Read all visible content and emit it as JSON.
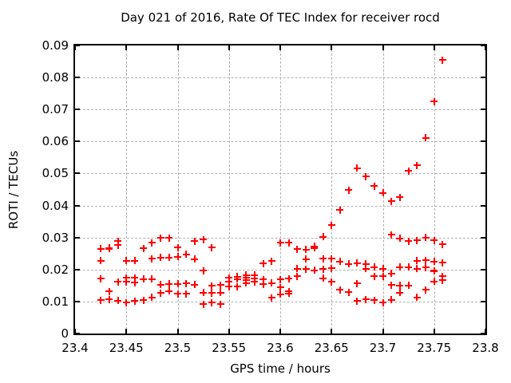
{
  "chart_data": {
    "type": "scatter",
    "title": "Day 021 of 2016, Rate Of TEC Index for receiver rocd",
    "xlabel": "GPS time / hours",
    "ylabel": "ROTI / TECUs",
    "xlim": [
      23.4,
      23.8
    ],
    "ylim": [
      0,
      0.09
    ],
    "xtick_labels": [
      "23.4",
      "23.45",
      "23.5",
      "23.55",
      "23.6",
      "23.65",
      "23.7",
      "23.75",
      "23.8"
    ],
    "ytick_labels": [
      "0",
      "0.01",
      "0.02",
      "0.03",
      "0.04",
      "0.05",
      "0.06",
      "0.07",
      "0.08",
      "0.09"
    ],
    "grid": true,
    "grid_style": "dashed",
    "grid_color": "#b0b0b0",
    "legend": "none",
    "marker_shape": "plus",
    "marker_color": "#ff0000",
    "background_color": "#ffffff",
    "points": [
      [
        23.425,
        0.0265
      ],
      [
        23.425,
        0.0228
      ],
      [
        23.425,
        0.0172
      ],
      [
        23.425,
        0.0104
      ],
      [
        23.4333,
        0.0268
      ],
      [
        23.4333,
        0.0265
      ],
      [
        23.4333,
        0.0131
      ],
      [
        23.4333,
        0.0106
      ],
      [
        23.4417,
        0.0288
      ],
      [
        23.4417,
        0.0276
      ],
      [
        23.4417,
        0.0161
      ],
      [
        23.4417,
        0.0103
      ],
      [
        23.45,
        0.0228
      ],
      [
        23.45,
        0.0174
      ],
      [
        23.45,
        0.0161
      ],
      [
        23.45,
        0.0096
      ],
      [
        23.4583,
        0.0228
      ],
      [
        23.4583,
        0.0174
      ],
      [
        23.4583,
        0.0159
      ],
      [
        23.4583,
        0.0102
      ],
      [
        23.4667,
        0.0266
      ],
      [
        23.4667,
        0.017
      ],
      [
        23.4667,
        0.0104
      ],
      [
        23.475,
        0.0284
      ],
      [
        23.475,
        0.0234
      ],
      [
        23.475,
        0.017
      ],
      [
        23.475,
        0.0113
      ],
      [
        23.4833,
        0.0298
      ],
      [
        23.4833,
        0.0237
      ],
      [
        23.4833,
        0.0153
      ],
      [
        23.4833,
        0.0126
      ],
      [
        23.4917,
        0.0298
      ],
      [
        23.4917,
        0.0237
      ],
      [
        23.4917,
        0.0155
      ],
      [
        23.4917,
        0.0133
      ],
      [
        23.5,
        0.0269
      ],
      [
        23.5,
        0.024
      ],
      [
        23.5,
        0.0155
      ],
      [
        23.5,
        0.0124
      ],
      [
        23.5083,
        0.0247
      ],
      [
        23.5083,
        0.0157
      ],
      [
        23.5083,
        0.0124
      ],
      [
        23.5167,
        0.0288
      ],
      [
        23.5167,
        0.0233
      ],
      [
        23.5167,
        0.0153
      ],
      [
        23.525,
        0.0293
      ],
      [
        23.525,
        0.0196
      ],
      [
        23.525,
        0.0128
      ],
      [
        23.525,
        0.0092
      ],
      [
        23.5333,
        0.0269
      ],
      [
        23.5333,
        0.0149
      ],
      [
        23.5333,
        0.0127
      ],
      [
        23.5333,
        0.0096
      ],
      [
        23.5417,
        0.0151
      ],
      [
        23.5417,
        0.0128
      ],
      [
        23.5417,
        0.0091
      ],
      [
        23.55,
        0.0174
      ],
      [
        23.55,
        0.0163
      ],
      [
        23.55,
        0.0147
      ],
      [
        23.5583,
        0.0178
      ],
      [
        23.5583,
        0.017
      ],
      [
        23.5583,
        0.0147
      ],
      [
        23.5667,
        0.0182
      ],
      [
        23.5667,
        0.0174
      ],
      [
        23.5667,
        0.0166
      ],
      [
        23.5667,
        0.0158
      ],
      [
        23.575,
        0.0182
      ],
      [
        23.575,
        0.0173
      ],
      [
        23.575,
        0.0161
      ],
      [
        23.5833,
        0.0219
      ],
      [
        23.5833,
        0.0169
      ],
      [
        23.5833,
        0.0154
      ],
      [
        23.5917,
        0.0226
      ],
      [
        23.5917,
        0.0158
      ],
      [
        23.5917,
        0.0111
      ],
      [
        23.6,
        0.0283
      ],
      [
        23.6,
        0.0169
      ],
      [
        23.6,
        0.0144
      ],
      [
        23.6,
        0.0123
      ],
      [
        23.6083,
        0.0283
      ],
      [
        23.6083,
        0.0171
      ],
      [
        23.6083,
        0.0131
      ],
      [
        23.6083,
        0.0125
      ],
      [
        23.6167,
        0.0264
      ],
      [
        23.6167,
        0.0202
      ],
      [
        23.6167,
        0.0179
      ],
      [
        23.625,
        0.0262
      ],
      [
        23.625,
        0.0233
      ],
      [
        23.625,
        0.0201
      ],
      [
        23.6333,
        0.0272
      ],
      [
        23.6333,
        0.0268
      ],
      [
        23.6333,
        0.0198
      ],
      [
        23.6417,
        0.0302
      ],
      [
        23.6417,
        0.0234
      ],
      [
        23.6417,
        0.0201
      ],
      [
        23.6417,
        0.0173
      ],
      [
        23.65,
        0.0338
      ],
      [
        23.65,
        0.0234
      ],
      [
        23.65,
        0.0204
      ],
      [
        23.65,
        0.0162
      ],
      [
        23.6583,
        0.0386
      ],
      [
        23.6583,
        0.0225
      ],
      [
        23.6583,
        0.0137
      ],
      [
        23.6667,
        0.0448
      ],
      [
        23.6667,
        0.0218
      ],
      [
        23.6667,
        0.0129
      ],
      [
        23.675,
        0.0517
      ],
      [
        23.675,
        0.022
      ],
      [
        23.675,
        0.0156
      ],
      [
        23.675,
        0.0102
      ],
      [
        23.6833,
        0.049
      ],
      [
        23.6833,
        0.0217
      ],
      [
        23.6833,
        0.0203
      ],
      [
        23.6833,
        0.0106
      ],
      [
        23.6917,
        0.046
      ],
      [
        23.6917,
        0.0208
      ],
      [
        23.6917,
        0.0179
      ],
      [
        23.6917,
        0.0104
      ],
      [
        23.7,
        0.044
      ],
      [
        23.7,
        0.0202
      ],
      [
        23.7,
        0.0179
      ],
      [
        23.7,
        0.0097
      ],
      [
        23.7083,
        0.0413
      ],
      [
        23.7083,
        0.0308
      ],
      [
        23.7083,
        0.0188
      ],
      [
        23.7083,
        0.0151
      ],
      [
        23.7083,
        0.0105
      ],
      [
        23.7167,
        0.0426
      ],
      [
        23.7167,
        0.0297
      ],
      [
        23.7167,
        0.0208
      ],
      [
        23.7167,
        0.015
      ],
      [
        23.7167,
        0.0128
      ],
      [
        23.725,
        0.0508
      ],
      [
        23.725,
        0.0289
      ],
      [
        23.725,
        0.0208
      ],
      [
        23.725,
        0.015
      ],
      [
        23.7333,
        0.0526
      ],
      [
        23.7333,
        0.0291
      ],
      [
        23.7333,
        0.0227
      ],
      [
        23.7333,
        0.0202
      ],
      [
        23.7333,
        0.0113
      ],
      [
        23.7417,
        0.0611
      ],
      [
        23.7417,
        0.03
      ],
      [
        23.7417,
        0.0229
      ],
      [
        23.7417,
        0.0206
      ],
      [
        23.7417,
        0.0136
      ],
      [
        23.75,
        0.0725
      ],
      [
        23.75,
        0.0291
      ],
      [
        23.75,
        0.0225
      ],
      [
        23.75,
        0.0196
      ],
      [
        23.75,
        0.0195
      ],
      [
        23.75,
        0.0163
      ],
      [
        23.7583,
        0.0854
      ],
      [
        23.7583,
        0.0279
      ],
      [
        23.7583,
        0.0221
      ],
      [
        23.7583,
        0.0179
      ],
      [
        23.7583,
        0.0167
      ]
    ]
  }
}
